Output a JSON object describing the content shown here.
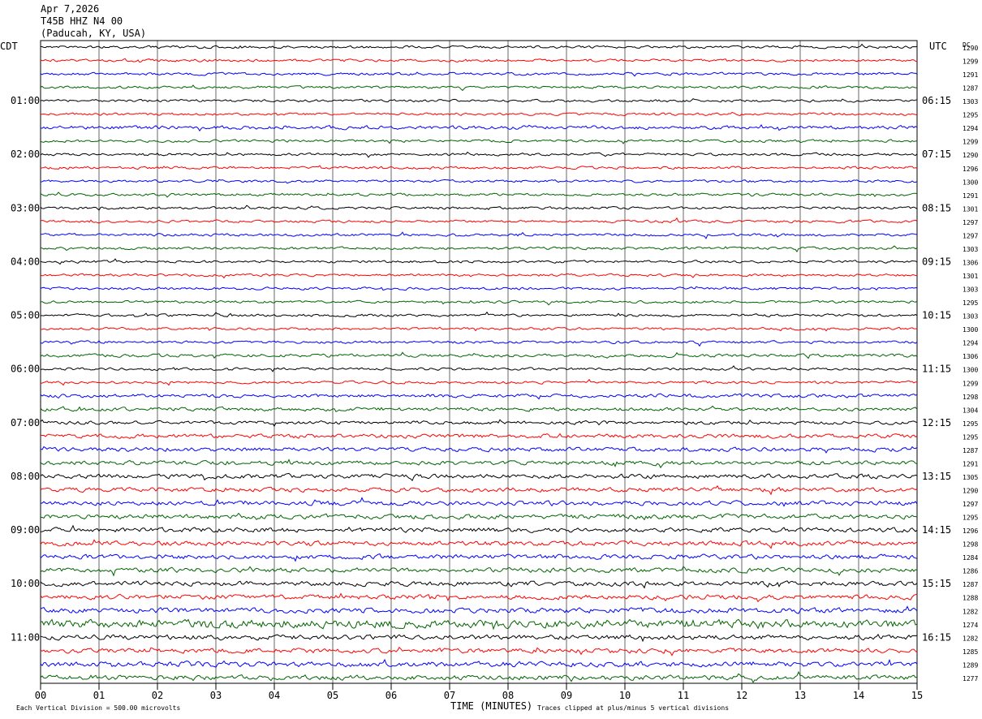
{
  "header": {
    "date": "Apr 7,2026",
    "station": "T45B HHZ N4 00",
    "location": "(Paducah, KY, USA)"
  },
  "chart_data": {
    "type": "line",
    "title": "",
    "left_timezone": "CDT",
    "right_timezone": "UTC",
    "right_column_header": "DC",
    "xlabel": "TIME (MINUTES)",
    "x_ticks": [
      "00",
      "01",
      "02",
      "03",
      "04",
      "05",
      "06",
      "07",
      "08",
      "09",
      "10",
      "11",
      "12",
      "13",
      "14",
      "15"
    ],
    "xlim": [
      0,
      15
    ],
    "trace_colors": [
      "#000000",
      "#ff0000",
      "#0000ff",
      "#006400"
    ],
    "left_hour_labels": [
      "01:00",
      "02:00",
      "03:00",
      "04:00",
      "05:00",
      "06:00",
      "07:00",
      "08:00",
      "09:00",
      "10:00",
      "11:00"
    ],
    "right_hour_labels": [
      "06:15",
      "07:15",
      "08:15",
      "09:15",
      "10:15",
      "11:15",
      "12:15",
      "13:15",
      "14:15",
      "15:15",
      "16:15"
    ],
    "dc_offsets": [
      1290,
      1299,
      1291,
      1287,
      1303,
      1295,
      1294,
      1299,
      1290,
      1296,
      1300,
      1291,
      1301,
      1297,
      1297,
      1303,
      1306,
      1301,
      1303,
      1295,
      1303,
      1300,
      1294,
      1306,
      1300,
      1299,
      1298,
      1304,
      1295,
      1295,
      1287,
      1291,
      1305,
      1290,
      1297,
      1295,
      1296,
      1298,
      1284,
      1286,
      1287,
      1288,
      1282,
      1274,
      1282,
      1285,
      1289,
      1277
    ],
    "trace_amplitude_levels": [
      0.9,
      0.9,
      0.9,
      0.9,
      0.9,
      0.9,
      1.2,
      0.9,
      0.9,
      0.9,
      0.9,
      0.9,
      0.9,
      0.9,
      0.9,
      0.9,
      0.9,
      0.9,
      0.9,
      0.9,
      0.9,
      0.9,
      0.9,
      1.1,
      0.9,
      0.9,
      1.2,
      1.2,
      1.2,
      1.4,
      1.4,
      1.4,
      1.5,
      1.5,
      1.5,
      1.6,
      1.6,
      1.6,
      1.6,
      1.6,
      1.6,
      1.6,
      1.8,
      2.8,
      1.7,
      1.6,
      1.8,
      1.6
    ],
    "footnote_left": "Each Vertical Division =  500.00 microvolts",
    "footnote_right": "Traces clipped at plus/minus 5 vertical divisions"
  }
}
